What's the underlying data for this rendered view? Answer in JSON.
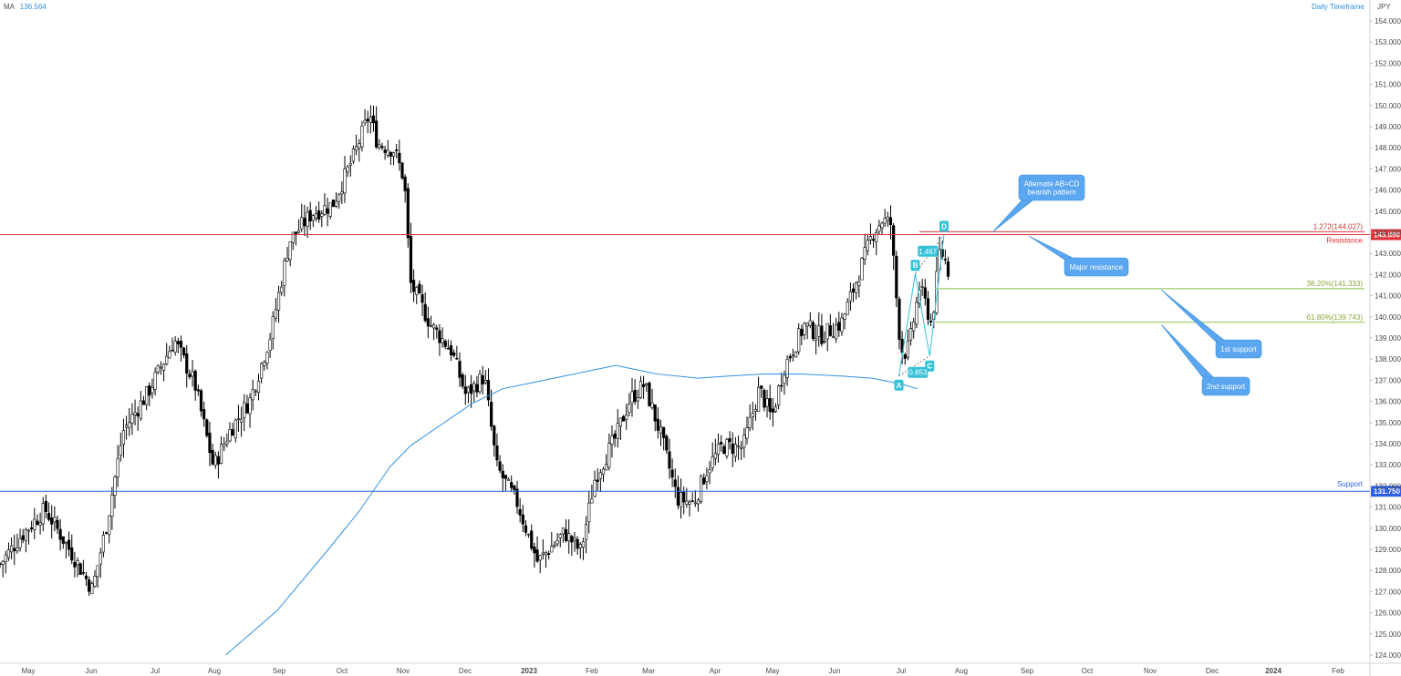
{
  "header": {
    "indicator_label": "MA",
    "indicator_value": "136.564",
    "timeframe": "Daily Timeframe",
    "currency": "JPY"
  },
  "colors": {
    "up": "#ffffff",
    "down": "#000000",
    "ma": "#2f8fe0",
    "resistance": "#e0303a",
    "support": "#2f5fe8",
    "fib": "#8bc34a",
    "pattern": "#35c2d8",
    "callout": "#5aa6f0",
    "axis_text": "#4a4a4a"
  },
  "chart_data": {
    "type": "candlestick",
    "title": "",
    "x_axis": {
      "labels": [
        "May",
        "Jun",
        "Jul",
        "Aug",
        "Sep",
        "Oct",
        "Nov",
        "Dec",
        "2023",
        "Feb",
        "Mar",
        "Apr",
        "May",
        "Jun",
        "Jul",
        "Aug",
        "Sep",
        "Oct",
        "Nov",
        "Dec",
        "2024",
        "Feb"
      ]
    },
    "y_axis": {
      "range": [
        124.0,
        154.0
      ],
      "ticks": [
        "154.000",
        "153.000",
        "152.000",
        "151.000",
        "150.000",
        "149.000",
        "148.000",
        "147.000",
        "146.000",
        "145.000",
        "144.000",
        "143.000",
        "142.000",
        "141.000",
        "140.000",
        "139.000",
        "138.000",
        "137.000",
        "136.000",
        "135.000",
        "134.000",
        "133.000",
        "132.000",
        "131.000",
        "130.000",
        "129.000",
        "128.000",
        "127.000",
        "126.000",
        "125.000",
        "124.000"
      ]
    },
    "price_path": [
      {
        "d": 0,
        "p": 128.3
      },
      {
        "d": 10,
        "p": 129.6
      },
      {
        "d": 22,
        "p": 130.9
      },
      {
        "d": 35,
        "p": 128.8
      },
      {
        "d": 45,
        "p": 127.1
      },
      {
        "d": 52,
        "p": 130.2
      },
      {
        "d": 60,
        "p": 134.6
      },
      {
        "d": 72,
        "p": 136.4
      },
      {
        "d": 85,
        "p": 138.9
      },
      {
        "d": 95,
        "p": 136.8
      },
      {
        "d": 104,
        "p": 132.9
      },
      {
        "d": 112,
        "p": 134.6
      },
      {
        "d": 122,
        "p": 136.1
      },
      {
        "d": 132,
        "p": 139.2
      },
      {
        "d": 141,
        "p": 143.6
      },
      {
        "d": 152,
        "p": 144.9
      },
      {
        "d": 162,
        "p": 145.3
      },
      {
        "d": 172,
        "p": 147.5
      },
      {
        "d": 180,
        "p": 149.6
      },
      {
        "d": 184,
        "p": 148.2
      },
      {
        "d": 192,
        "p": 147.9
      },
      {
        "d": 197,
        "p": 146.5
      },
      {
        "d": 200,
        "p": 141.6
      },
      {
        "d": 210,
        "p": 139.6
      },
      {
        "d": 220,
        "p": 138.4
      },
      {
        "d": 227,
        "p": 136.3
      },
      {
        "d": 236,
        "p": 137.2
      },
      {
        "d": 242,
        "p": 132.9
      },
      {
        "d": 252,
        "p": 131.2
      },
      {
        "d": 262,
        "p": 128.4
      },
      {
        "d": 275,
        "p": 129.8
      },
      {
        "d": 283,
        "p": 128.9
      },
      {
        "d": 290,
        "p": 132.4
      },
      {
        "d": 300,
        "p": 134.3
      },
      {
        "d": 307,
        "p": 136.1
      },
      {
        "d": 314,
        "p": 136.8
      },
      {
        "d": 322,
        "p": 134.4
      },
      {
        "d": 330,
        "p": 131.4
      },
      {
        "d": 338,
        "p": 131.2
      },
      {
        "d": 345,
        "p": 132.9
      },
      {
        "d": 352,
        "p": 133.9
      },
      {
        "d": 362,
        "p": 133.8
      },
      {
        "d": 370,
        "p": 136.6
      },
      {
        "d": 376,
        "p": 135.2
      },
      {
        "d": 382,
        "p": 137.6
      },
      {
        "d": 392,
        "p": 139.6
      },
      {
        "d": 400,
        "p": 139.1
      },
      {
        "d": 410,
        "p": 139.7
      },
      {
        "d": 418,
        "p": 141.9
      },
      {
        "d": 425,
        "p": 143.9
      },
      {
        "d": 430,
        "p": 144.6
      },
      {
        "d": 434,
        "p": 144.4
      },
      {
        "d": 436,
        "p": 141.9
      },
      {
        "d": 438,
        "p": 139.4
      },
      {
        "d": 440,
        "p": 138.2
      },
      {
        "d": 443,
        "p": 138.6
      },
      {
        "d": 448,
        "p": 141.4
      },
      {
        "d": 451,
        "p": 140.6
      },
      {
        "d": 454,
        "p": 139.6
      },
      {
        "d": 456,
        "p": 141.4
      },
      {
        "d": 458,
        "p": 143.2
      },
      {
        "d": 461,
        "p": 142.6
      },
      {
        "d": 463,
        "p": 141.8
      }
    ],
    "moving_average": [
      {
        "d": 110,
        "p": 124.0
      },
      {
        "d": 135,
        "p": 126.1
      },
      {
        "d": 160,
        "p": 129.0
      },
      {
        "d": 175,
        "p": 130.8
      },
      {
        "d": 190,
        "p": 132.9
      },
      {
        "d": 200,
        "p": 133.9
      },
      {
        "d": 215,
        "p": 134.9
      },
      {
        "d": 230,
        "p": 135.9
      },
      {
        "d": 245,
        "p": 136.6
      },
      {
        "d": 260,
        "p": 136.9
      },
      {
        "d": 275,
        "p": 137.2
      },
      {
        "d": 290,
        "p": 137.5
      },
      {
        "d": 300,
        "p": 137.7
      },
      {
        "d": 310,
        "p": 137.5
      },
      {
        "d": 320,
        "p": 137.3
      },
      {
        "d": 340,
        "p": 137.1
      },
      {
        "d": 355,
        "p": 137.2
      },
      {
        "d": 372,
        "p": 137.3
      },
      {
        "d": 390,
        "p": 137.3
      },
      {
        "d": 410,
        "p": 137.2
      },
      {
        "d": 425,
        "p": 137.1
      },
      {
        "d": 440,
        "p": 136.8
      },
      {
        "d": 447,
        "p": 136.6
      }
    ],
    "levels": [
      {
        "price": 143.89,
        "label": "Resistance",
        "badge": "143.890",
        "color_key": "resistance"
      },
      {
        "price": 131.75,
        "label": "Support",
        "badge": "131.750",
        "color_key": "support"
      }
    ],
    "fib_levels": [
      {
        "price": 144.027,
        "label": "1.272(144.027)",
        "color_key": "resistance"
      },
      {
        "price": 141.333,
        "label": "38.20%(141.333)",
        "color_key": "fib"
      },
      {
        "price": 139.743,
        "label": "61.80%(139.743)",
        "color_key": "fib"
      }
    ],
    "abcd_pattern": {
      "points": [
        {
          "label": "A",
          "d": 438,
          "p": 137.2
        },
        {
          "label": "B",
          "d": 446,
          "p": 142.05
        },
        {
          "label": "C",
          "d": 453,
          "p": 138.15
        },
        {
          "label": "D",
          "d": 460,
          "p": 143.9
        }
      ],
      "ratios": [
        {
          "label": "0.853"
        },
        {
          "label": "1.467"
        }
      ]
    },
    "annotations": [
      {
        "text_lines": [
          "Alternate AB=CD",
          "bearish pattern"
        ]
      },
      {
        "text_lines": [
          "Major resistance"
        ]
      },
      {
        "text_lines": [
          "1st support"
        ]
      },
      {
        "text_lines": [
          "2nd support"
        ]
      }
    ]
  }
}
